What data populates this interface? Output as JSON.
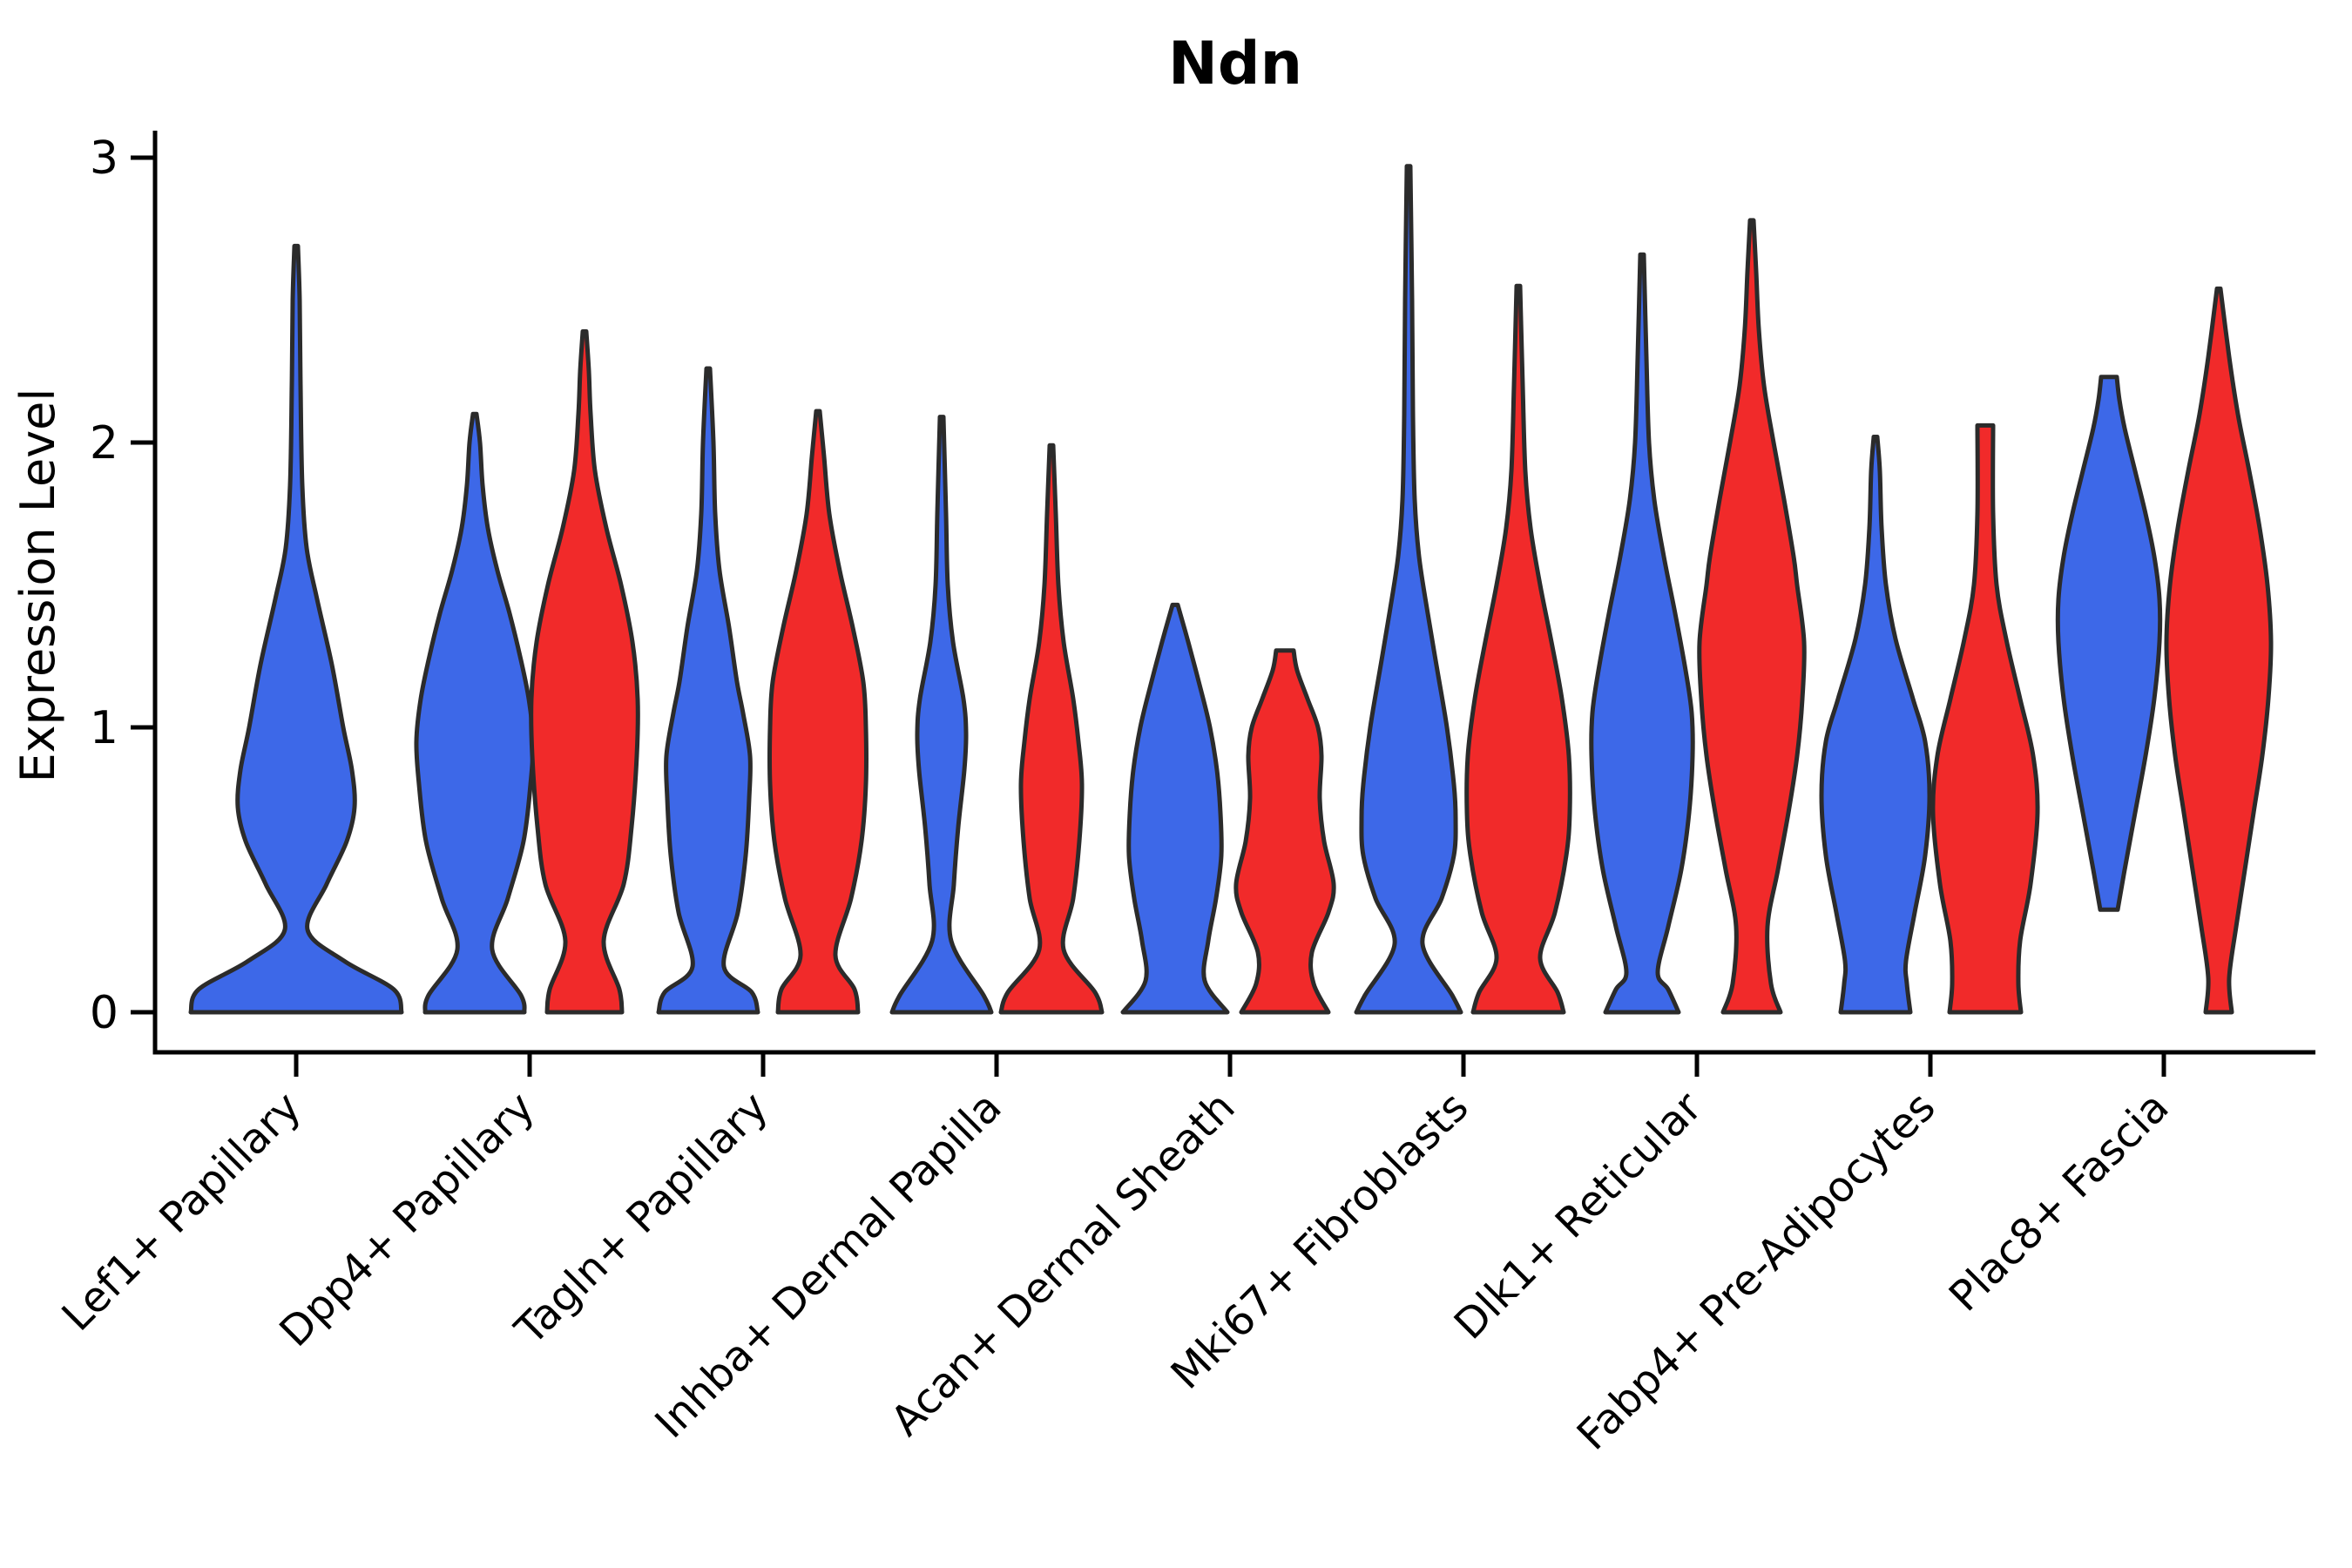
{
  "chart_data": {
    "type": "violin",
    "title": "Ndn",
    "xlabel": "",
    "ylabel": "Expression Level",
    "ylim": [
      0,
      3
    ],
    "yticks": [
      0,
      1,
      2,
      3
    ],
    "grid": "off",
    "legend": "none",
    "categories": [
      "Lef1+ Papillary",
      "Dpp4+ Papillary",
      "Tagln+ Papillary",
      "Inhba+ Dermal Papilla",
      "Acan+ Dermal Sheath",
      "Mki67+ Fibroblasts",
      "Dlk1+ Reticular",
      "Fabp4+ Pre-Adipocytes",
      "Plac8+ Fascia"
    ],
    "series": [
      {
        "name": "blue",
        "color": "#3D68E8"
      },
      {
        "name": "red",
        "color": "#F12A2A"
      }
    ],
    "outline_color": "#2B2B2B",
    "violins": [
      {
        "category_index": 0,
        "series": "blue",
        "position": "center",
        "expression_max": 2.69,
        "profile": [
          [
            0,
            121
          ],
          [
            0.08,
            112
          ],
          [
            0.18,
            55
          ],
          [
            0.29,
            13
          ],
          [
            0.45,
            35
          ],
          [
            0.6,
            58
          ],
          [
            0.72,
            67
          ],
          [
            0.85,
            64
          ],
          [
            1.0,
            54
          ],
          [
            1.22,
            41
          ],
          [
            1.45,
            24
          ],
          [
            1.63,
            12
          ],
          [
            1.85,
            7
          ],
          [
            2.2,
            5
          ],
          [
            2.5,
            4
          ],
          [
            2.69,
            2
          ]
        ]
      },
      {
        "category_index": 1,
        "series": "blue",
        "position": "left",
        "expression_max": 2.1,
        "profile": [
          [
            0,
            57
          ],
          [
            0.06,
            53
          ],
          [
            0.22,
            20
          ],
          [
            0.4,
            38
          ],
          [
            0.6,
            56
          ],
          [
            0.8,
            64
          ],
          [
            0.95,
            67
          ],
          [
            1.1,
            62
          ],
          [
            1.25,
            52
          ],
          [
            1.4,
            40
          ],
          [
            1.55,
            26
          ],
          [
            1.7,
            15
          ],
          [
            1.85,
            9
          ],
          [
            2.0,
            6
          ],
          [
            2.1,
            2
          ]
        ]
      },
      {
        "category_index": 1,
        "series": "red",
        "position": "right",
        "expression_max": 2.39,
        "profile": [
          [
            0,
            43
          ],
          [
            0.08,
            40
          ],
          [
            0.25,
            22
          ],
          [
            0.45,
            45
          ],
          [
            0.65,
            54
          ],
          [
            0.9,
            60
          ],
          [
            1.1,
            61
          ],
          [
            1.3,
            55
          ],
          [
            1.5,
            42
          ],
          [
            1.7,
            25
          ],
          [
            1.9,
            12
          ],
          [
            2.1,
            7
          ],
          [
            2.25,
            5
          ],
          [
            2.39,
            2
          ]
        ]
      },
      {
        "category_index": 2,
        "series": "blue",
        "position": "left",
        "expression_max": 2.26,
        "profile": [
          [
            0,
            57
          ],
          [
            0.07,
            50
          ],
          [
            0.16,
            18
          ],
          [
            0.35,
            34
          ],
          [
            0.55,
            43
          ],
          [
            0.75,
            47
          ],
          [
            0.9,
            48
          ],
          [
            1.05,
            40
          ],
          [
            1.16,
            33
          ],
          [
            1.35,
            24
          ],
          [
            1.55,
            13
          ],
          [
            1.75,
            8
          ],
          [
            2.0,
            6
          ],
          [
            2.26,
            2
          ]
        ]
      },
      {
        "category_index": 2,
        "series": "red",
        "position": "right",
        "expression_max": 2.11,
        "profile": [
          [
            0,
            46
          ],
          [
            0.08,
            42
          ],
          [
            0.2,
            20
          ],
          [
            0.4,
            38
          ],
          [
            0.6,
            50
          ],
          [
            0.8,
            55
          ],
          [
            1.0,
            55
          ],
          [
            1.16,
            52
          ],
          [
            1.35,
            40
          ],
          [
            1.55,
            25
          ],
          [
            1.75,
            13
          ],
          [
            1.95,
            7
          ],
          [
            2.11,
            2
          ]
        ]
      },
      {
        "category_index": 3,
        "series": "blue",
        "position": "left",
        "expression_max": 2.09,
        "profile": [
          [
            0,
            57
          ],
          [
            0.06,
            48
          ],
          [
            0.25,
            11
          ],
          [
            0.45,
            14
          ],
          [
            0.65,
            19
          ],
          [
            0.85,
            26
          ],
          [
            0.98,
            28
          ],
          [
            1.1,
            25
          ],
          [
            1.3,
            13
          ],
          [
            1.5,
            7
          ],
          [
            1.75,
            5
          ],
          [
            2.09,
            2
          ]
        ]
      },
      {
        "category_index": 3,
        "series": "red",
        "position": "right",
        "expression_max": 1.99,
        "profile": [
          [
            0,
            58
          ],
          [
            0.07,
            50
          ],
          [
            0.22,
            14
          ],
          [
            0.4,
            25
          ],
          [
            0.6,
            32
          ],
          [
            0.8,
            35
          ],
          [
            0.95,
            31
          ],
          [
            1.1,
            25
          ],
          [
            1.3,
            14
          ],
          [
            1.5,
            8
          ],
          [
            1.75,
            5
          ],
          [
            1.99,
            2
          ]
        ]
      },
      {
        "category_index": 4,
        "series": "blue",
        "position": "left",
        "expression_max": 1.43,
        "profile": [
          [
            0,
            60
          ],
          [
            0.11,
            34
          ],
          [
            0.25,
            38
          ],
          [
            0.4,
            47
          ],
          [
            0.55,
            53
          ],
          [
            0.7,
            52
          ],
          [
            0.85,
            48
          ],
          [
            1.0,
            40
          ],
          [
            1.15,
            28
          ],
          [
            1.3,
            15
          ],
          [
            1.43,
            3
          ]
        ]
      },
      {
        "category_index": 4,
        "series": "red",
        "position": "right",
        "expression_max": 1.27,
        "flat_top": true,
        "profile": [
          [
            0,
            50
          ],
          [
            0.1,
            33
          ],
          [
            0.21,
            31
          ],
          [
            0.35,
            50
          ],
          [
            0.45,
            56
          ],
          [
            0.6,
            45
          ],
          [
            0.75,
            40
          ],
          [
            0.9,
            42
          ],
          [
            1.0,
            38
          ],
          [
            1.1,
            26
          ],
          [
            1.2,
            14
          ],
          [
            1.27,
            10
          ]
        ]
      },
      {
        "category_index": 5,
        "series": "blue",
        "position": "left",
        "expression_max": 2.97,
        "profile": [
          [
            0,
            60
          ],
          [
            0.06,
            50
          ],
          [
            0.24,
            16
          ],
          [
            0.4,
            38
          ],
          [
            0.55,
            52
          ],
          [
            0.68,
            54
          ],
          [
            0.8,
            52
          ],
          [
            1.0,
            44
          ],
          [
            1.2,
            33
          ],
          [
            1.4,
            22
          ],
          [
            1.6,
            12
          ],
          [
            1.8,
            7
          ],
          [
            2.1,
            5
          ],
          [
            2.5,
            4
          ],
          [
            2.97,
            2
          ]
        ]
      },
      {
        "category_index": 5,
        "series": "red",
        "position": "right",
        "expression_max": 2.55,
        "profile": [
          [
            0,
            52
          ],
          [
            0.07,
            45
          ],
          [
            0.19,
            25
          ],
          [
            0.35,
            42
          ],
          [
            0.55,
            55
          ],
          [
            0.7,
            59
          ],
          [
            0.9,
            58
          ],
          [
            1.1,
            50
          ],
          [
            1.3,
            38
          ],
          [
            1.5,
            25
          ],
          [
            1.7,
            14
          ],
          [
            1.9,
            8
          ],
          [
            2.2,
            5
          ],
          [
            2.55,
            2
          ]
        ]
      },
      {
        "category_index": 6,
        "series": "blue",
        "position": "left",
        "expression_max": 2.66,
        "profile": [
          [
            0,
            42
          ],
          [
            0.08,
            30
          ],
          [
            0.14,
            18
          ],
          [
            0.3,
            30
          ],
          [
            0.5,
            45
          ],
          [
            0.7,
            54
          ],
          [
            0.9,
            58
          ],
          [
            1.05,
            57
          ],
          [
            1.2,
            50
          ],
          [
            1.4,
            38
          ],
          [
            1.6,
            25
          ],
          [
            1.8,
            14
          ],
          [
            2.0,
            8
          ],
          [
            2.3,
            5
          ],
          [
            2.66,
            2
          ]
        ]
      },
      {
        "category_index": 6,
        "series": "red",
        "position": "right",
        "expression_max": 2.78,
        "profile": [
          [
            0,
            33
          ],
          [
            0.1,
            22
          ],
          [
            0.3,
            18
          ],
          [
            0.5,
            30
          ],
          [
            0.7,
            42
          ],
          [
            0.9,
            52
          ],
          [
            1.1,
            58
          ],
          [
            1.3,
            60
          ],
          [
            1.5,
            52
          ],
          [
            1.6,
            48
          ],
          [
            1.8,
            37
          ],
          [
            2.0,
            25
          ],
          [
            2.2,
            14
          ],
          [
            2.4,
            8
          ],
          [
            2.6,
            5
          ],
          [
            2.78,
            2
          ]
        ]
      },
      {
        "category_index": 7,
        "series": "blue",
        "position": "left",
        "expression_max": 2.02,
        "profile": [
          [
            0,
            40
          ],
          [
            0.1,
            36
          ],
          [
            0.18,
            35
          ],
          [
            0.35,
            45
          ],
          [
            0.55,
            57
          ],
          [
            0.76,
            62
          ],
          [
            0.95,
            57
          ],
          [
            1.1,
            43
          ],
          [
            1.31,
            23
          ],
          [
            1.5,
            12
          ],
          [
            1.7,
            7
          ],
          [
            1.9,
            5
          ],
          [
            2.02,
            2
          ]
        ]
      },
      {
        "category_index": 7,
        "series": "red",
        "position": "right",
        "expression_max": 2.06,
        "flat_top": true,
        "profile": [
          [
            0,
            41
          ],
          [
            0.1,
            38
          ],
          [
            0.25,
            40
          ],
          [
            0.45,
            52
          ],
          [
            0.7,
            60
          ],
          [
            0.9,
            55
          ],
          [
            1.1,
            40
          ],
          [
            1.31,
            24
          ],
          [
            1.5,
            13
          ],
          [
            1.75,
            9
          ],
          [
            2.06,
            9
          ]
        ]
      },
      {
        "category_index": 8,
        "series": "blue",
        "position": "left",
        "expression_min": 0.36,
        "expression_max": 2.23,
        "flat_top": true,
        "profile": [
          [
            0.36,
            10
          ],
          [
            0.5,
            18
          ],
          [
            0.7,
            30
          ],
          [
            0.9,
            42
          ],
          [
            1.1,
            52
          ],
          [
            1.3,
            58
          ],
          [
            1.45,
            58
          ],
          [
            1.6,
            52
          ],
          [
            1.75,
            42
          ],
          [
            1.9,
            30
          ],
          [
            2.05,
            18
          ],
          [
            2.15,
            12
          ],
          [
            2.23,
            9
          ]
        ]
      },
      {
        "category_index": 8,
        "series": "red",
        "position": "right",
        "expression_max": 2.54,
        "profile": [
          [
            0,
            15
          ],
          [
            0.12,
            12
          ],
          [
            0.3,
            20
          ],
          [
            0.5,
            30
          ],
          [
            0.7,
            40
          ],
          [
            0.9,
            50
          ],
          [
            1.1,
            57
          ],
          [
            1.3,
            60
          ],
          [
            1.5,
            56
          ],
          [
            1.7,
            47
          ],
          [
            1.9,
            35
          ],
          [
            2.1,
            22
          ],
          [
            2.3,
            12
          ],
          [
            2.54,
            2
          ]
        ]
      }
    ]
  }
}
